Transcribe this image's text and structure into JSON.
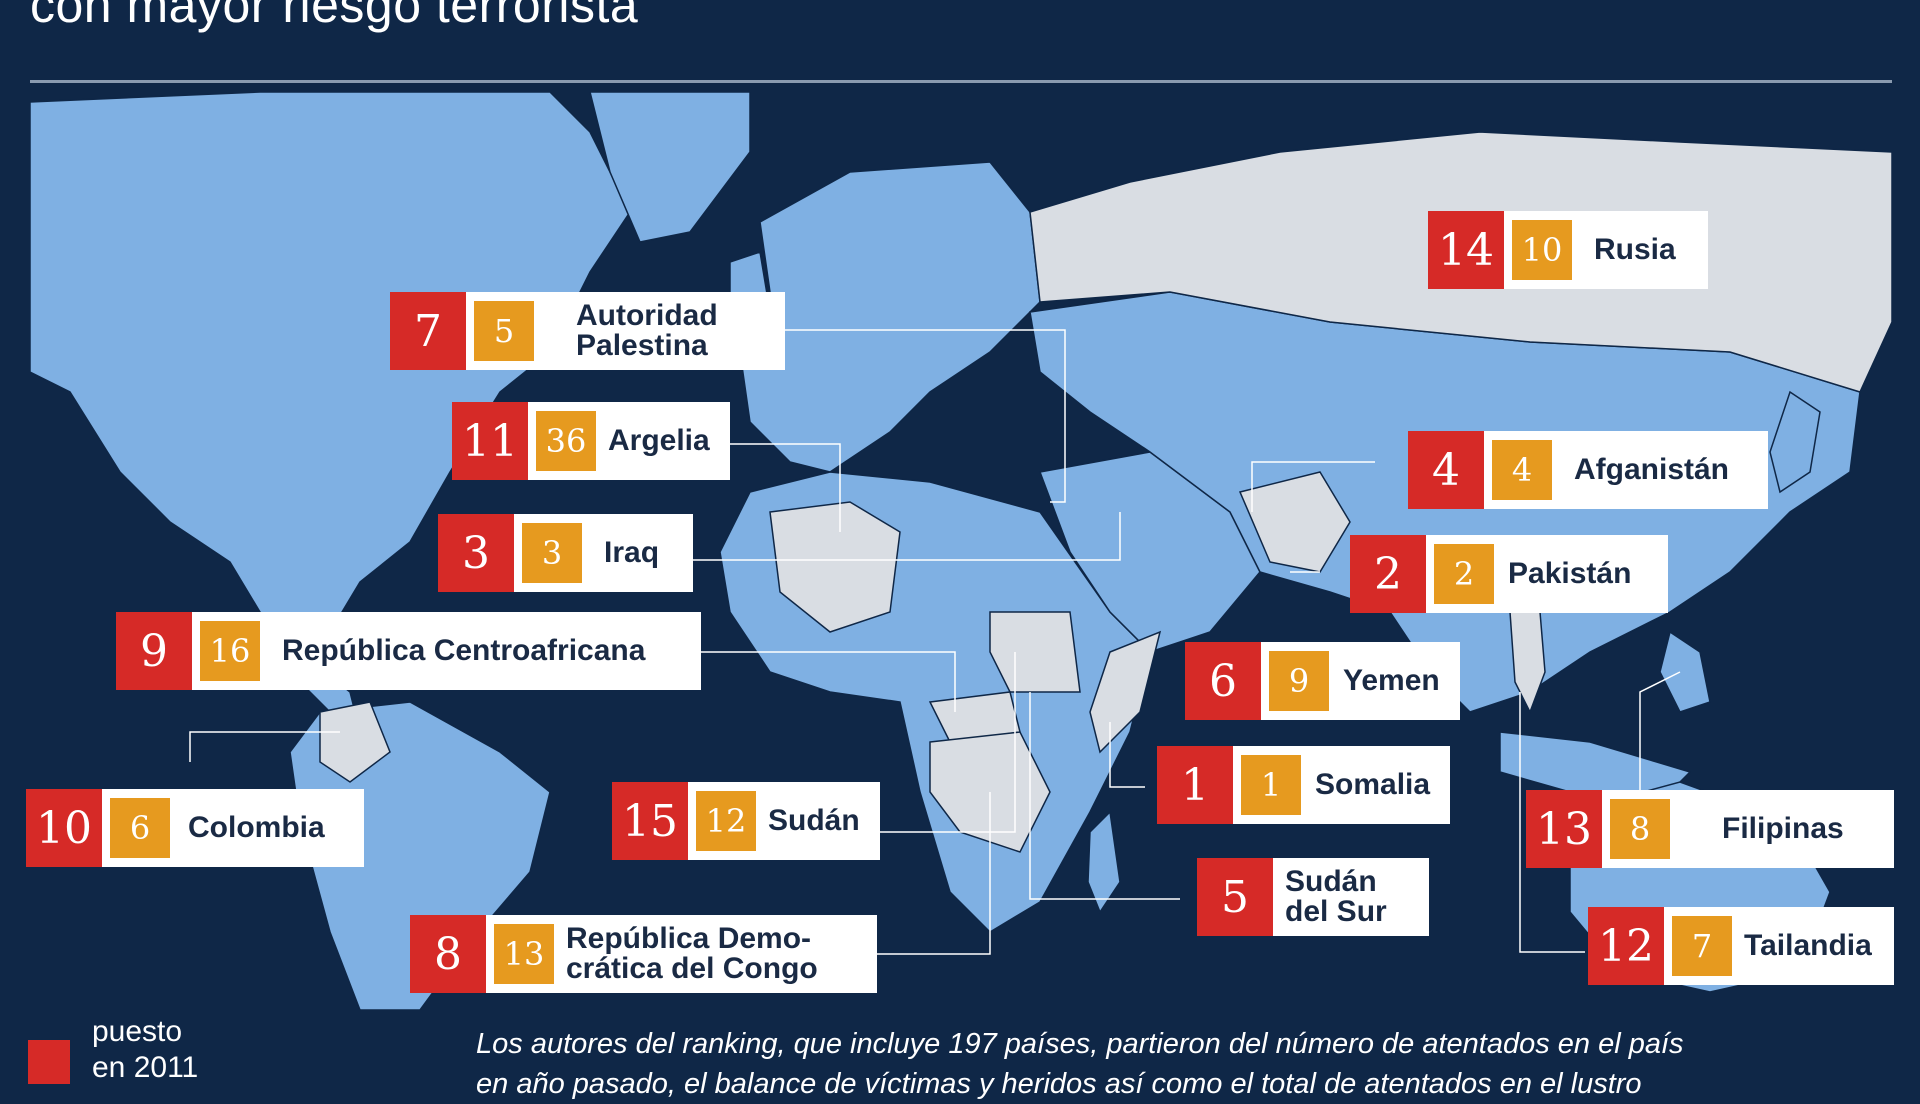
{
  "header": {
    "title": "con mayor riesgo terrorista"
  },
  "colors": {
    "background": "#0f2747",
    "ocean": "#0f2747",
    "land": "#7fb0e3",
    "highlight_land": "#d9dde3",
    "rank_2011": "#d62a27",
    "rank_2012": "#e69a1f",
    "card": "#ffffff"
  },
  "countries": [
    {
      "name": "Autoridad Palestina",
      "name_line1": "Autoridad",
      "name_line2": "Palestina",
      "rank_a": "7",
      "rank_b": "5"
    },
    {
      "name": "Argelia",
      "rank_a": "11",
      "rank_b": "36"
    },
    {
      "name": "Iraq",
      "rank_a": "3",
      "rank_b": "3"
    },
    {
      "name": "República Centroafricana",
      "rank_a": "9",
      "rank_b": "16"
    },
    {
      "name": "Colombia",
      "rank_a": "10",
      "rank_b": "6"
    },
    {
      "name": "Sudán",
      "rank_a": "15",
      "rank_b": "12"
    },
    {
      "name": "República Democrática del Congo",
      "name_line1": "República Demo-",
      "name_line2": "crática del Congo",
      "rank_a": "8",
      "rank_b": "13"
    },
    {
      "name": "Rusia",
      "rank_a": "14",
      "rank_b": "10"
    },
    {
      "name": "Afganistán",
      "rank_a": "4",
      "rank_b": "4"
    },
    {
      "name": "Pakistán",
      "rank_a": "2",
      "rank_b": "2"
    },
    {
      "name": "Yemen",
      "rank_a": "6",
      "rank_b": "9"
    },
    {
      "name": "Somalia",
      "rank_a": "1",
      "rank_b": "1"
    },
    {
      "name": "Sudán del Sur",
      "name_line1": "Sudán",
      "name_line2": "del Sur",
      "rank_a": "5"
    },
    {
      "name": "Filipinas",
      "rank_a": "13",
      "rank_b": "8"
    },
    {
      "name": "Tailandia",
      "rank_a": "12",
      "rank_b": "7"
    }
  ],
  "legend": {
    "line1": "puesto",
    "line2": "en 2011"
  },
  "footnote": {
    "line1": "Los autores del ranking, que incluye 197 países, partieron del número de atentados en el país",
    "line2": "en año pasado, el balance de víctimas y heridos así como el total de atentados en el lustro"
  }
}
